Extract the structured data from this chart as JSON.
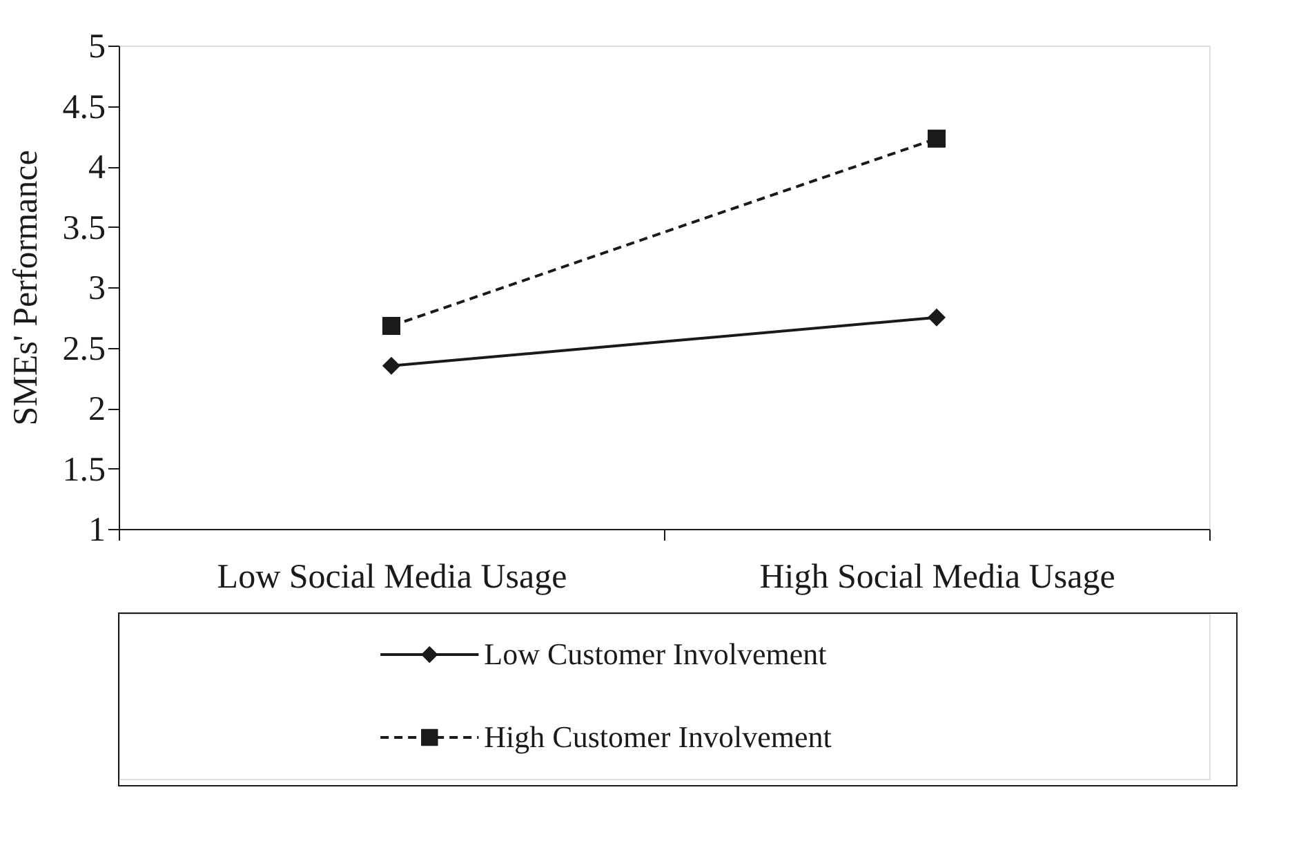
{
  "chart_data": {
    "type": "line",
    "ylabel": "SMEs' Performance",
    "categories": [
      "Low Social Media Usage",
      "High Social Media Usage"
    ],
    "series": [
      {
        "name": "Low Customer Involvement",
        "color": "#1a1a1a",
        "values": [
          2.35,
          2.75
        ],
        "marker": "diamond",
        "line_style": "solid"
      },
      {
        "name": "High Customer Involvement",
        "color": "#1a1a1a",
        "values": [
          2.68,
          4.23
        ],
        "marker": "square",
        "line_style": "dashed"
      }
    ],
    "ylim": [
      1,
      5
    ],
    "yticks": [
      1,
      1.5,
      2,
      2.5,
      3,
      3.5,
      4,
      4.5,
      5
    ],
    "grid": false,
    "legend": "bottom"
  }
}
